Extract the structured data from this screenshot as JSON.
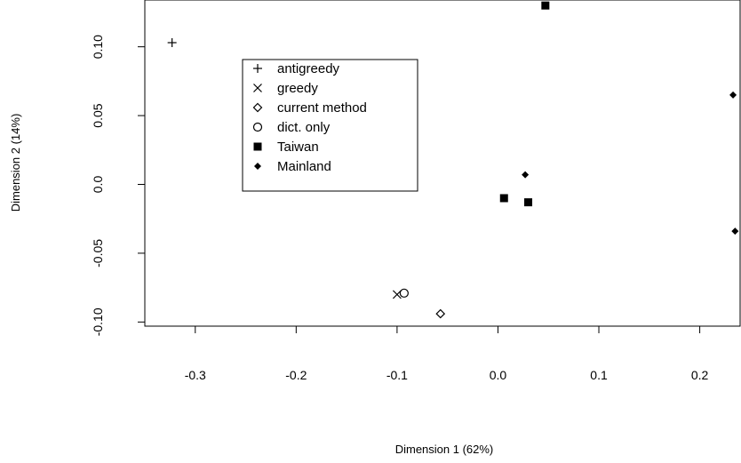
{
  "chart_data": {
    "type": "scatter",
    "title": "",
    "xlabel": "Dimension 1 (62%)",
    "ylabel": "Dimension 2 (14%)",
    "xlim": [
      -0.35,
      0.24
    ],
    "ylim": [
      -0.103,
      0.134
    ],
    "x_ticks": [
      {
        "value": -0.3,
        "label": "-0.3"
      },
      {
        "value": -0.2,
        "label": "-0.2"
      },
      {
        "value": -0.1,
        "label": "-0.1"
      },
      {
        "value": 0.0,
        "label": "0.0"
      },
      {
        "value": 0.1,
        "label": "0.1"
      },
      {
        "value": 0.2,
        "label": "0.2"
      }
    ],
    "y_ticks": [
      {
        "value": -0.1,
        "label": "-0.10"
      },
      {
        "value": -0.05,
        "label": "-0.05"
      },
      {
        "value": 0.0,
        "label": "0.0"
      },
      {
        "value": 0.05,
        "label": "0.05"
      },
      {
        "value": 0.1,
        "label": "0.10"
      }
    ],
    "grid": false,
    "legend_position": "top-left",
    "series": [
      {
        "name": "antigreedy",
        "symbol": "plus",
        "points": [
          {
            "x": -0.323,
            "y": 0.103
          }
        ]
      },
      {
        "name": "greedy",
        "symbol": "cross",
        "points": [
          {
            "x": -0.1,
            "y": -0.08
          }
        ]
      },
      {
        "name": "current method",
        "symbol": "diamond-open",
        "points": [
          {
            "x": -0.057,
            "y": -0.094
          }
        ]
      },
      {
        "name": "dict. only",
        "symbol": "circle-open",
        "points": [
          {
            "x": -0.093,
            "y": -0.079
          }
        ]
      },
      {
        "name": "Taiwan",
        "symbol": "square-filled",
        "points": [
          {
            "x": 0.047,
            "y": 0.13
          },
          {
            "x": 0.006,
            "y": -0.01
          },
          {
            "x": 0.03,
            "y": -0.013
          }
        ]
      },
      {
        "name": "Mainland",
        "symbol": "diamond-filled",
        "points": [
          {
            "x": 0.027,
            "y": 0.007
          },
          {
            "x": 0.233,
            "y": 0.065
          },
          {
            "x": 0.235,
            "y": -0.034
          }
        ]
      }
    ]
  }
}
